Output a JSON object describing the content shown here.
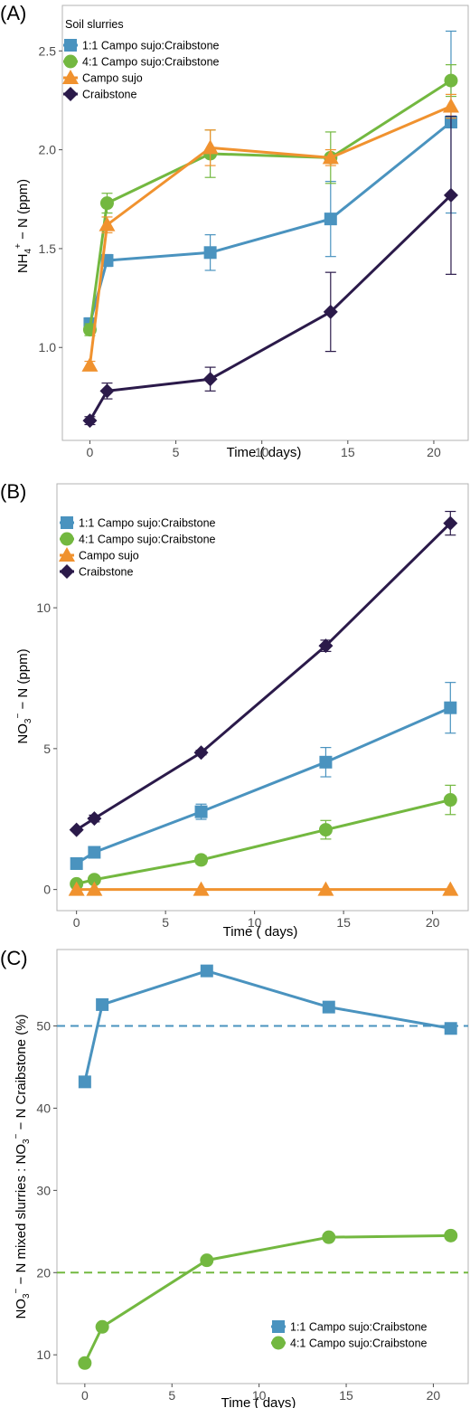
{
  "colors": {
    "mix11": "#4a93bf",
    "mix41": "#73b840",
    "campo": "#f0922f",
    "craib": "#2b1a4a",
    "frame": "#b3b3b3"
  },
  "chart_data": [
    {
      "panel_label": "(A)",
      "type": "line",
      "xlabel": "Time    ( days)",
      "ylabel_main": "NH",
      "ylabel_sub": "4",
      "ylabel_sup": "+",
      "ylabel_rest": " − N (ppm)",
      "xlim": [
        -1.6,
        22.0
      ],
      "ylim": [
        0.53,
        2.73
      ],
      "xticks": [
        0,
        5,
        10,
        15,
        20
      ],
      "xtick_labels": [
        "0",
        "5",
        "10",
        "15",
        "20"
      ],
      "yticks": [
        1.0,
        1.5,
        2.0,
        2.5
      ],
      "ytick_labels": [
        "1.0",
        "1.5",
        "2.0",
        "2.5"
      ],
      "legend_title": "Soil slurries",
      "legend_position": "top-left",
      "x": [
        0,
        1,
        7,
        14,
        21
      ],
      "series": [
        {
          "name": "1:1  Campo sujo:Craibstone",
          "marker": "square",
          "color_key": "mix11",
          "values": [
            1.12,
            1.44,
            1.48,
            1.65,
            2.14
          ],
          "err": [
            0.03,
            0.03,
            0.09,
            0.19,
            0.46
          ]
        },
        {
          "name": "4:1 Campo sujo:Craibstone",
          "marker": "circle",
          "color_key": "mix41",
          "values": [
            1.09,
            1.73,
            1.98,
            1.96,
            2.35
          ],
          "err": [
            0.03,
            0.05,
            0.12,
            0.13,
            0.08
          ]
        },
        {
          "name": "Campo sujo",
          "marker": "triangle",
          "color_key": "campo",
          "values": [
            0.91,
            1.62,
            2.01,
            1.96,
            2.22
          ],
          "err": [
            0.02,
            0.04,
            0.09,
            0.04,
            0.06
          ]
        },
        {
          "name": "Craibstone",
          "marker": "diamond",
          "color_key": "craib",
          "values": [
            0.63,
            0.78,
            0.84,
            1.18,
            1.77
          ],
          "err": [
            0.02,
            0.04,
            0.06,
            0.2,
            0.4
          ]
        }
      ]
    },
    {
      "panel_label": "(B)",
      "type": "line",
      "xlabel": "Time    ( days)",
      "ylabel_main": "NO",
      "ylabel_sub": "3",
      "ylabel_sup": "−",
      "ylabel_rest": " − N (ppm)",
      "xlim": [
        -1.1,
        22.0
      ],
      "ylim": [
        -0.75,
        14.4
      ],
      "xticks": [
        0,
        5,
        10,
        15,
        20
      ],
      "xtick_labels": [
        "0",
        "5",
        "10",
        "15",
        "20"
      ],
      "yticks": [
        0,
        5,
        10
      ],
      "ytick_labels": [
        "0",
        "5",
        "10"
      ],
      "legend_title": "",
      "legend_position": "top-left",
      "x": [
        0,
        1,
        7,
        14,
        21
      ],
      "series": [
        {
          "name": "1:1  Campo sujo:Craibstone",
          "marker": "square",
          "color_key": "mix11",
          "values": [
            0.92,
            1.32,
            2.76,
            4.52,
            6.45
          ],
          "err": [
            0.06,
            0.06,
            0.27,
            0.52,
            0.9
          ]
        },
        {
          "name": "4:1 Campo sujo:Craibstone",
          "marker": "circle",
          "color_key": "mix41",
          "values": [
            0.2,
            0.35,
            1.05,
            2.12,
            3.18
          ],
          "err": [
            0.03,
            0.05,
            0.15,
            0.33,
            0.52
          ]
        },
        {
          "name": "Campo sujo",
          "marker": "triangle",
          "color_key": "campo",
          "values": [
            0.0,
            0.0,
            0.0,
            0.0,
            0.0
          ],
          "err": [
            0.0,
            0.0,
            0.0,
            0.0,
            0.0
          ]
        },
        {
          "name": "Craibstone",
          "marker": "diamond",
          "color_key": "craib",
          "values": [
            2.12,
            2.52,
            4.86,
            8.65,
            13.0
          ],
          "err": [
            0.05,
            0.12,
            0.08,
            0.2,
            0.42
          ]
        }
      ]
    },
    {
      "panel_label": "(C)",
      "type": "line",
      "xlabel": "Time    ( days)",
      "ylabel_main": "NO",
      "ylabel_sub": "3",
      "ylabel_sup": "−",
      "ylabel_rest": " − N mixed slurries : NO",
      "ylabel_main2": "",
      "ylabel_sub2": "3",
      "ylabel_sup2": "−",
      "ylabel_rest2": " − N Craibstone (%)",
      "xlim": [
        -1.6,
        22.0
      ],
      "ylim": [
        6.5,
        59.3
      ],
      "xticks": [
        0,
        5,
        10,
        15,
        20
      ],
      "xtick_labels": [
        "0",
        "5",
        "10",
        "15",
        "20"
      ],
      "yticks": [
        10,
        20,
        30,
        40,
        50
      ],
      "ytick_labels": [
        "10",
        "20",
        "30",
        "40",
        "50"
      ],
      "legend_title": "",
      "legend_position": "bottom-right",
      "x": [
        0,
        1,
        7,
        14,
        21
      ],
      "reference_lines": [
        {
          "y": 50,
          "color_key": "mix11"
        },
        {
          "y": 20,
          "color_key": "mix41"
        }
      ],
      "series": [
        {
          "name": "1:1  Campo sujo:Craibstone",
          "marker": "square",
          "color_key": "mix11",
          "values": [
            43.2,
            52.6,
            56.7,
            52.3,
            49.7
          ]
        },
        {
          "name": "4:1 Campo sujo:Craibstone",
          "marker": "circle",
          "color_key": "mix41",
          "values": [
            9.0,
            13.4,
            21.5,
            24.3,
            24.5
          ]
        }
      ]
    }
  ]
}
